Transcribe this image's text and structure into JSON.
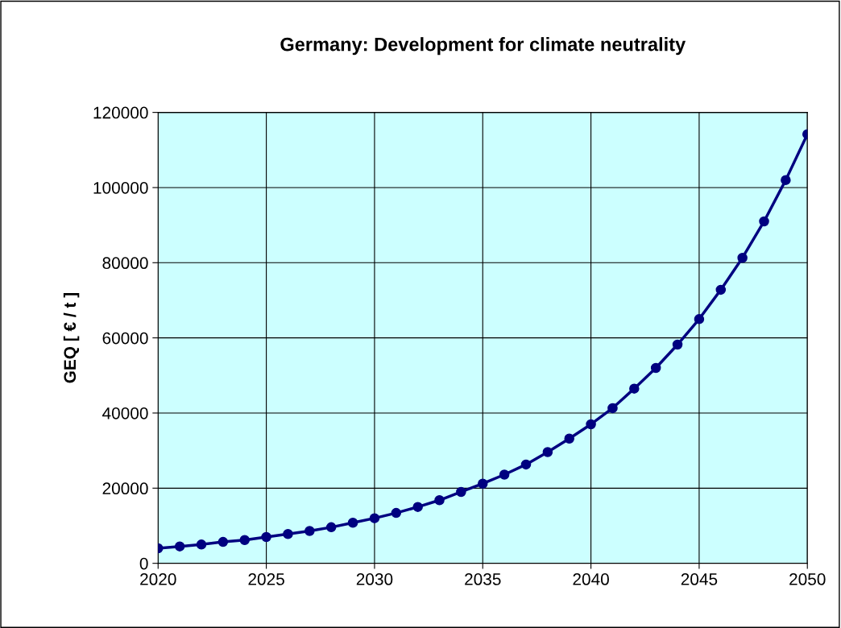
{
  "chart_data": {
    "type": "line",
    "title": "Germany: Development for climate neutrality",
    "ylabel": "GEQ [ € / t ]",
    "x": [
      2020,
      2021,
      2022,
      2023,
      2024,
      2025,
      2026,
      2027,
      2028,
      2029,
      2030,
      2031,
      2032,
      2033,
      2034,
      2035,
      2036,
      2037,
      2038,
      2039,
      2040,
      2041,
      2042,
      2043,
      2044,
      2045,
      2046,
      2047,
      2048,
      2049,
      2050
    ],
    "series": [
      {
        "color": "#000080",
        "values": [
          4000,
          4500,
          5000,
          5700,
          6200,
          7000,
          7800,
          8600,
          9600,
          10800,
          12000,
          13400,
          15000,
          16800,
          19000,
          21200,
          23600,
          26300,
          29600,
          33200,
          37000,
          41300,
          46500,
          52000,
          58200,
          65000,
          72800,
          81300,
          91000,
          102000,
          114200
        ]
      }
    ],
    "xlim": [
      2020,
      2050
    ],
    "xticks": [
      2020,
      2025,
      2030,
      2035,
      2040,
      2045,
      2050
    ],
    "ylim": [
      0,
      120000
    ],
    "yticks": [
      0,
      20000,
      40000,
      60000,
      80000,
      100000,
      120000
    ],
    "grid": true,
    "marker": "circle",
    "line_style": "solid",
    "legend": false
  }
}
